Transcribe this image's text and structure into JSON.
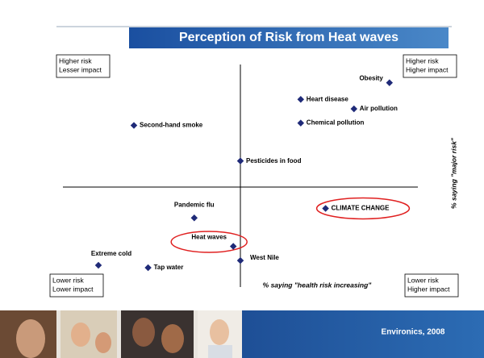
{
  "chart_data": {
    "type": "scatter",
    "title": "Perception of Risk from Heat waves",
    "x_label": "% saying \"health risk increasing\"",
    "y_label": "% saying \"major risk\"",
    "footer": "Environics, 2008",
    "quadrant_labels": [
      [
        "Higher risk",
        "Lesser impact"
      ],
      [
        "Higher risk",
        "Higher impact"
      ],
      [
        "Lower risk",
        "Lower impact"
      ],
      [
        "Lower risk",
        "Higher impact"
      ]
    ],
    "color": "#1f2a78",
    "highlight_color": "#e02020",
    "xlim": [
      0,
      100
    ],
    "ylim": [
      0,
      100
    ],
    "points": [
      {
        "name": "Obesity",
        "x": 92,
        "y": 94
      },
      {
        "name": "Heart disease",
        "x": 67,
        "y": 87
      },
      {
        "name": "Air pollution",
        "x": 82,
        "y": 83
      },
      {
        "name": "Chemical pollution",
        "x": 67,
        "y": 77
      },
      {
        "name": "Second-hand smoke",
        "x": 20,
        "y": 76
      },
      {
        "name": "Pesticides in food",
        "x": 50,
        "y": 61
      },
      {
        "name": "Pandemic flu",
        "x": 37,
        "y": 37
      },
      {
        "name": "CLIMATE CHANGE",
        "x": 74,
        "y": 41
      },
      {
        "name": "Heat waves",
        "x": 48,
        "y": 25
      },
      {
        "name": "West Nile",
        "x": 50,
        "y": 19
      },
      {
        "name": "Extreme cold",
        "x": 10,
        "y": 17
      },
      {
        "name": "Tap water",
        "x": 24,
        "y": 16
      }
    ],
    "highlighted": [
      "CLIMATE CHANGE",
      "Heat waves"
    ]
  }
}
